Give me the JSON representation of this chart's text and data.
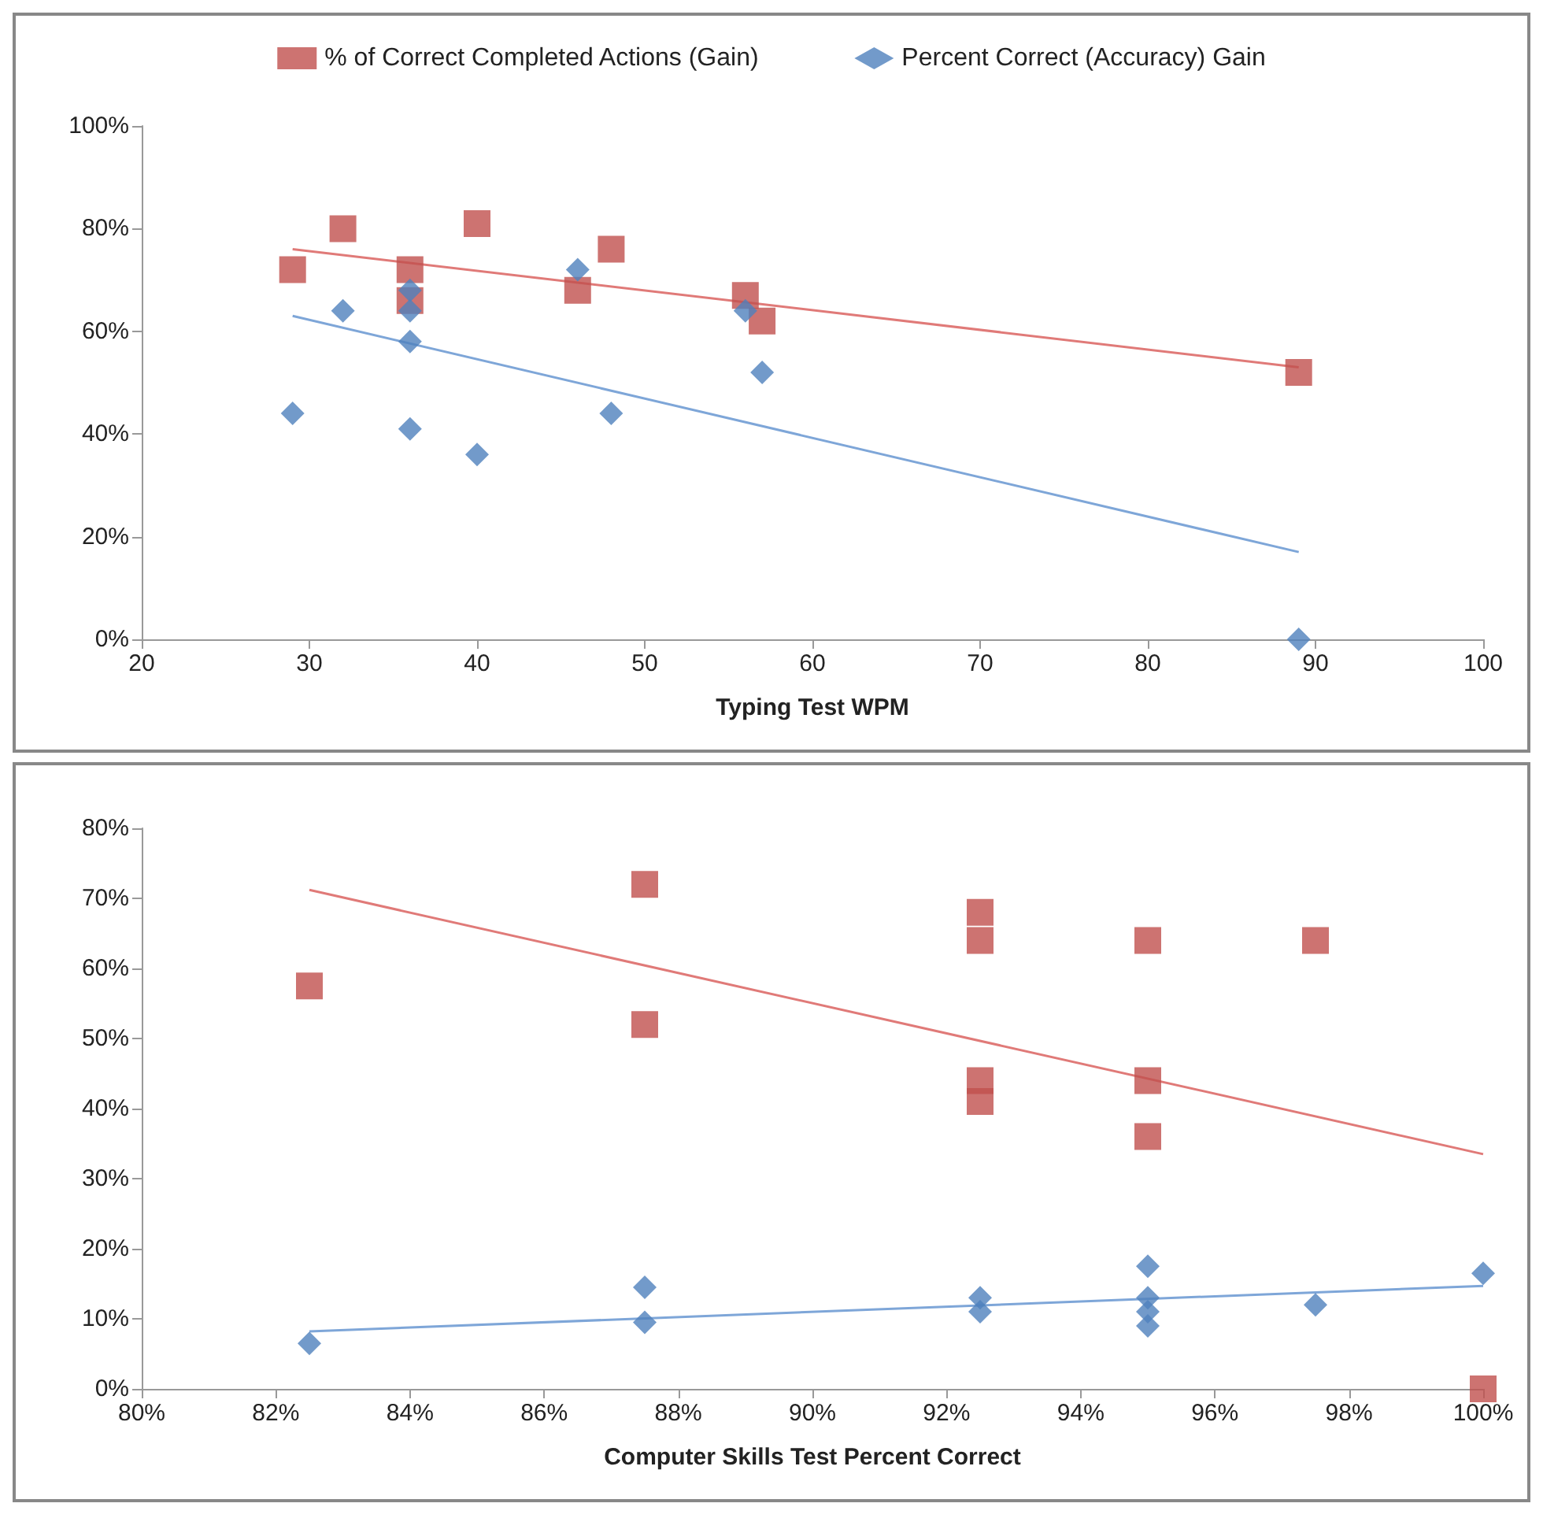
{
  "chart_data": [
    {
      "type": "scatter",
      "xlabel": "Typing Test WPM",
      "xlim": [
        20,
        100
      ],
      "xticks": [
        20,
        30,
        40,
        50,
        60,
        70,
        80,
        90,
        100
      ],
      "ylim": [
        0,
        100
      ],
      "yticks": [
        {
          "value": 0,
          "label": "0%"
        },
        {
          "value": 20,
          "label": "20%"
        },
        {
          "value": 40,
          "label": "40%"
        },
        {
          "value": 60,
          "label": "60%"
        },
        {
          "value": 80,
          "label": "80%"
        },
        {
          "value": 100,
          "label": "100%"
        }
      ],
      "grid": false,
      "legend": "top",
      "series": [
        {
          "name": "% of Correct Completed Actions (Gain)",
          "color": "#c0504d",
          "marker": "square",
          "x": [
            29,
            32,
            36,
            36,
            40,
            46,
            48,
            56,
            57,
            89
          ],
          "values": [
            72,
            80,
            72,
            66,
            81,
            68,
            76,
            67,
            62,
            52
          ]
        },
        {
          "name": "Percent Correct (Accuracy) Gain",
          "color": "#4f81bd",
          "marker": "diamond",
          "x": [
            29,
            32,
            36,
            36,
            36,
            36,
            40,
            46,
            48,
            56,
            57,
            89
          ],
          "values": [
            44,
            64,
            68,
            64,
            58,
            41,
            36,
            72,
            44,
            64,
            52,
            0
          ]
        },
        {
          "type": "line",
          "color": "#e07a78",
          "marker": "none",
          "x": [
            29,
            89
          ],
          "values": [
            76,
            53
          ]
        },
        {
          "type": "line",
          "color": "#7ea6d8",
          "marker": "none",
          "x": [
            29,
            89
          ],
          "values": [
            63,
            17
          ]
        }
      ]
    },
    {
      "type": "scatter",
      "xlabel": "Computer Skills Test Percent Correct",
      "xlim": [
        80,
        100
      ],
      "xticks": [
        {
          "value": 80,
          "label": "80%"
        },
        {
          "value": 82,
          "label": "82%"
        },
        {
          "value": 84,
          "label": "84%"
        },
        {
          "value": 86,
          "label": "86%"
        },
        {
          "value": 88,
          "label": "88%"
        },
        {
          "value": 90,
          "label": "90%"
        },
        {
          "value": 92,
          "label": "92%"
        },
        {
          "value": 94,
          "label": "94%"
        },
        {
          "value": 96,
          "label": "96%"
        },
        {
          "value": 98,
          "label": "98%"
        },
        {
          "value": 100,
          "label": "100%"
        }
      ],
      "ylim": [
        0,
        80
      ],
      "yticks": [
        {
          "value": 0,
          "label": "0%"
        },
        {
          "value": 10,
          "label": "10%"
        },
        {
          "value": 20,
          "label": "20%"
        },
        {
          "value": 30,
          "label": "30%"
        },
        {
          "value": 40,
          "label": "40%"
        },
        {
          "value": 50,
          "label": "50%"
        },
        {
          "value": 60,
          "label": "60%"
        },
        {
          "value": 70,
          "label": "70%"
        },
        {
          "value": 80,
          "label": "80%"
        }
      ],
      "grid": false,
      "series": [
        {
          "color": "#c0504d",
          "marker": "square",
          "x": [
            82.5,
            87.5,
            87.5,
            92.5,
            92.5,
            92.5,
            92.5,
            95,
            95,
            95,
            97.5,
            100
          ],
          "values": [
            57.5,
            72,
            52,
            68,
            64,
            44,
            41,
            64,
            44,
            36,
            64,
            0
          ]
        },
        {
          "color": "#4f81bd",
          "marker": "diamond",
          "x": [
            82.5,
            87.5,
            87.5,
            92.5,
            92.5,
            95,
            95,
            95,
            95,
            97.5,
            100
          ],
          "values": [
            6.5,
            14.5,
            9.5,
            13,
            11,
            17.5,
            13,
            11,
            9,
            12,
            16.5
          ]
        },
        {
          "type": "line",
          "color": "#e07a78",
          "marker": "none",
          "x": [
            82.5,
            100
          ],
          "values": [
            71.2,
            33.5
          ]
        },
        {
          "type": "line",
          "color": "#7ea6d8",
          "marker": "none",
          "x": [
            82.5,
            100
          ],
          "values": [
            8.2,
            14.7
          ]
        }
      ]
    }
  ]
}
